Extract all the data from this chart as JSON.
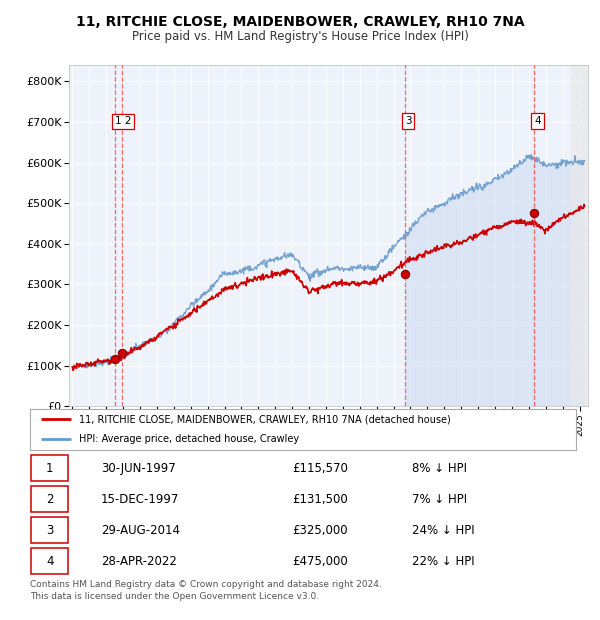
{
  "title": "11, RITCHIE CLOSE, MAIDENBOWER, CRAWLEY, RH10 7NA",
  "subtitle": "Price paid vs. HM Land Registry's House Price Index (HPI)",
  "xlim": [
    1994.8,
    2025.5
  ],
  "ylim": [
    0,
    840000
  ],
  "yticks": [
    0,
    100000,
    200000,
    300000,
    400000,
    500000,
    600000,
    700000,
    800000
  ],
  "ytick_labels": [
    "£0",
    "£100K",
    "£200K",
    "£300K",
    "£400K",
    "£500K",
    "£600K",
    "£700K",
    "£800K"
  ],
  "xticks": [
    1995,
    1996,
    1997,
    1998,
    1999,
    2000,
    2001,
    2002,
    2003,
    2004,
    2005,
    2006,
    2007,
    2008,
    2009,
    2010,
    2011,
    2012,
    2013,
    2014,
    2015,
    2016,
    2017,
    2018,
    2019,
    2020,
    2021,
    2022,
    2023,
    2024,
    2025
  ],
  "background_color": "#ffffff",
  "plot_bg_color": "#eef2fb",
  "grid_color": "#ffffff",
  "hpi_color": "#6699cc",
  "hpi_fill_color": "#c8d8f0",
  "price_color": "#cc0000",
  "dashed_line_color": "#ff5555",
  "transactions": [
    {
      "num": "1 2",
      "year": 1997.5,
      "price": 115570,
      "is_pair": true
    },
    {
      "num": "3",
      "year": 2014.66,
      "price": 325000,
      "is_pair": false
    },
    {
      "num": "4",
      "year": 2022.32,
      "price": 475000,
      "is_pair": false
    }
  ],
  "sale_points": [
    {
      "year": 1997.5,
      "price": 115570
    },
    {
      "year": 1997.96,
      "price": 131500
    },
    {
      "year": 2014.66,
      "price": 325000
    },
    {
      "year": 2022.32,
      "price": 475000
    }
  ],
  "dashed_lines": [
    1997.5,
    1997.96,
    2014.66,
    2022.32
  ],
  "shade_from": 2014.66,
  "hatch_from": 2024.5,
  "legend_property": "11, RITCHIE CLOSE, MAIDENBOWER, CRAWLEY, RH10 7NA (detached house)",
  "legend_hpi": "HPI: Average price, detached house, Crawley",
  "table_rows": [
    [
      "1",
      "30-JUN-1997",
      "£115,570",
      "8% ↓ HPI"
    ],
    [
      "2",
      "15-DEC-1997",
      "£131,500",
      "7% ↓ HPI"
    ],
    [
      "3",
      "29-AUG-2014",
      "£325,000",
      "24% ↓ HPI"
    ],
    [
      "4",
      "28-APR-2022",
      "£475,000",
      "22% ↓ HPI"
    ]
  ],
  "footnote": "Contains HM Land Registry data © Crown copyright and database right 2024.\nThis data is licensed under the Open Government Licence v3.0."
}
